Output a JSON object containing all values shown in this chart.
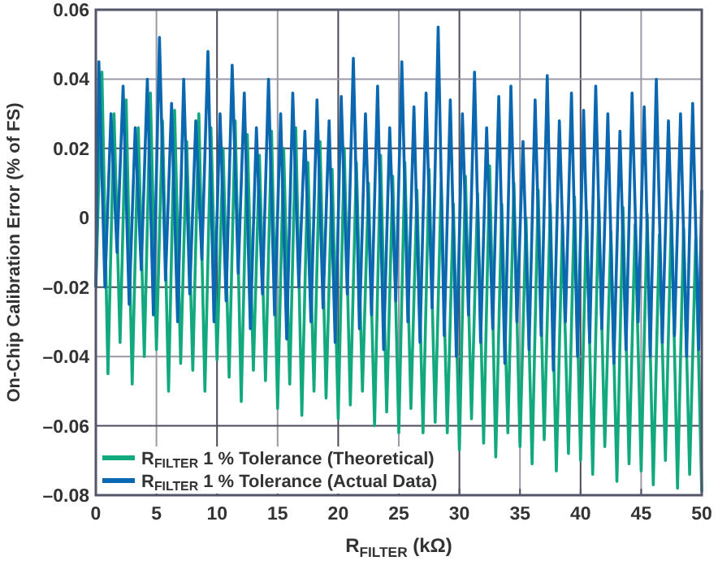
{
  "chart_data": {
    "type": "line",
    "xlabel": "R$_{FILTER}$ (kΩ)",
    "ylabel": "On-Chip Calibration Error (% of FS)",
    "xlim": [
      0,
      50
    ],
    "xticks": [
      0,
      5,
      10,
      15,
      20,
      25,
      30,
      35,
      40,
      45,
      50
    ],
    "ylim": [
      -0.08,
      0.06
    ],
    "yticks": [
      {
        "value": -0.08,
        "label": "–0.08"
      },
      {
        "value": -0.06,
        "label": "–0.06"
      },
      {
        "value": -0.04,
        "label": "–0.04"
      },
      {
        "value": -0.02,
        "label": "–0.02"
      },
      0,
      0.02,
      0.04,
      0.06
    ],
    "grid": true,
    "legend": "bottom left",
    "line_style": "solid",
    "marker": "none",
    "series": [
      {
        "name": "R$_{FILTER}$ 1 % Tolerance (Theoretical)",
        "color": "#13a97f",
        "x": [
          0,
          0.5,
          1,
          1.5,
          2,
          2.5,
          3,
          3.5,
          4,
          4.5,
          5,
          5.5,
          6,
          6.5,
          7,
          7.5,
          8,
          8.5,
          9,
          9.5,
          10,
          10.5,
          11,
          11.5,
          12,
          12.5,
          13,
          13.5,
          14,
          14.5,
          15,
          15.5,
          16,
          16.5,
          17,
          17.5,
          18,
          18.5,
          19,
          19.5,
          20,
          20.5,
          21,
          21.5,
          22,
          22.5,
          23,
          23.5,
          24,
          24.5,
          25,
          25.5,
          26,
          26.5,
          27,
          27.5,
          28,
          28.5,
          29,
          29.5,
          30,
          30.5,
          31,
          31.5,
          32,
          32.5,
          33,
          33.5,
          34,
          34.5,
          35,
          35.5,
          36,
          36.5,
          37,
          37.5,
          38,
          38.5,
          39,
          39.5,
          40,
          40.5,
          41,
          41.5,
          42,
          42.5,
          43,
          43.5,
          44,
          44.5,
          45,
          45.5,
          46,
          46.5,
          47,
          47.5,
          48,
          48.5,
          49,
          49.5,
          50
        ],
        "values": [
          -0.02,
          0.042,
          -0.045,
          0.03,
          -0.036,
          0.034,
          -0.048,
          0.026,
          -0.04,
          0.036,
          -0.038,
          0.028,
          -0.05,
          0.031,
          -0.042,
          0.022,
          -0.044,
          0.03,
          -0.05,
          0.026,
          -0.041,
          0.02,
          -0.046,
          0.028,
          -0.053,
          0.024,
          -0.044,
          0.018,
          -0.047,
          0.025,
          -0.055,
          0.02,
          -0.048,
          0.026,
          -0.057,
          0.016,
          -0.05,
          0.022,
          -0.052,
          0.014,
          -0.058,
          0.02,
          -0.054,
          0.016,
          -0.05,
          0.01,
          -0.06,
          0.018,
          -0.056,
          0.012,
          -0.062,
          0.016,
          -0.055,
          0.008,
          -0.062,
          0.014,
          -0.059,
          0.01,
          -0.062,
          0.004,
          -0.067,
          0.012,
          -0.058,
          0.007,
          -0.065,
          0.015,
          -0.069,
          0.004,
          -0.062,
          0.01,
          -0.066,
          0,
          -0.071,
          0.008,
          -0.064,
          0.004,
          -0.073,
          -0.002,
          -0.068,
          0.006,
          -0.07,
          0.002,
          -0.074,
          0.005,
          -0.066,
          -0.004,
          -0.076,
          0.003,
          -0.071,
          -0.002,
          -0.073,
          0.001,
          -0.077,
          -0.005,
          -0.07,
          0.002,
          -0.078,
          -0.003,
          -0.074,
          -0.006,
          -0.079
        ]
      },
      {
        "name": "R$_{FILTER}$ 1 % Tolerance (Actual Data)",
        "color": "#0b68b0",
        "x": [
          0,
          0.25,
          0.75,
          1.25,
          1.75,
          2.25,
          2.75,
          3.25,
          3.75,
          4.25,
          4.75,
          5.25,
          5.75,
          6.25,
          6.75,
          7.25,
          7.75,
          8.25,
          8.75,
          9.25,
          9.75,
          10.25,
          10.75,
          11.25,
          11.75,
          12.25,
          12.75,
          13.25,
          13.75,
          14.25,
          14.75,
          15.25,
          15.75,
          16.25,
          16.75,
          17.25,
          17.75,
          18.25,
          18.75,
          19.25,
          19.75,
          20.25,
          20.75,
          21.25,
          21.75,
          22.25,
          22.75,
          23.25,
          23.75,
          24.25,
          24.75,
          25.25,
          25.75,
          26.25,
          26.75,
          27.25,
          27.75,
          28.25,
          28.75,
          29.25,
          29.75,
          30.25,
          30.75,
          31.25,
          31.75,
          32.25,
          32.75,
          33.25,
          33.75,
          34.25,
          34.75,
          35.25,
          35.75,
          36.25,
          36.75,
          37.25,
          37.75,
          38.25,
          38.75,
          39.25,
          39.75,
          40.25,
          40.75,
          41.25,
          41.75,
          42.25,
          42.75,
          43.25,
          43.75,
          44.25,
          44.75,
          45.25,
          45.75,
          46.25,
          46.75,
          47.25,
          47.75,
          48.25,
          48.75,
          49.25,
          49.75,
          50
        ],
        "values": [
          -0.02,
          0.045,
          -0.02,
          0.03,
          -0.01,
          0.038,
          -0.025,
          0.026,
          -0.015,
          0.04,
          -0.028,
          0.052,
          -0.018,
          0.033,
          -0.03,
          0.04,
          -0.022,
          0.028,
          -0.012,
          0.048,
          -0.03,
          0.03,
          -0.024,
          0.044,
          -0.016,
          0.036,
          -0.032,
          0.026,
          -0.022,
          0.04,
          -0.028,
          0.03,
          -0.035,
          0.036,
          -0.02,
          0.025,
          -0.03,
          0.034,
          -0.026,
          0.028,
          -0.036,
          0.035,
          -0.022,
          0.046,
          -0.032,
          0.03,
          -0.028,
          0.038,
          -0.038,
          0.026,
          -0.024,
          0.045,
          -0.03,
          0.032,
          -0.036,
          0.036,
          -0.026,
          0.055,
          -0.034,
          0.034,
          -0.04,
          0.03,
          -0.028,
          0.042,
          -0.036,
          0.026,
          -0.032,
          0.035,
          -0.042,
          0.038,
          -0.03,
          0.022,
          -0.038,
          0.034,
          -0.034,
          0.041,
          -0.044,
          0.028,
          -0.03,
          0.036,
          -0.04,
          0.031,
          -0.036,
          0.038,
          -0.032,
          0.03,
          -0.042,
          0.025,
          -0.038,
          0.036,
          -0.03,
          0.032,
          -0.04,
          0.04,
          -0.036,
          0.028,
          -0.034,
          0.03,
          -0.04,
          0.033,
          -0.038,
          0.008
        ]
      }
    ]
  }
}
